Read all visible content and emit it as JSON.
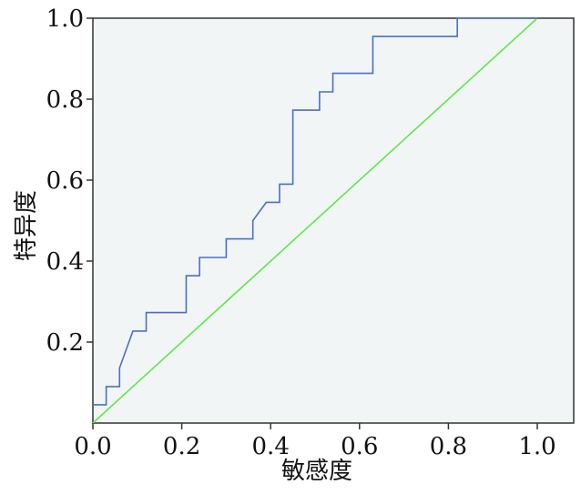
{
  "chart_data": {
    "type": "line",
    "title": "",
    "xlabel": "敏感度",
    "ylabel": "特异度",
    "xlim": [
      0,
      1.08
    ],
    "ylim": [
      0,
      1.0
    ],
    "x_ticks": [
      "0.0",
      "0.2",
      "0.4",
      "0.6",
      "0.8",
      "1.0"
    ],
    "y_ticks": [
      "0.2",
      "0.4",
      "0.6",
      "0.8",
      "1.0"
    ],
    "grid": false,
    "legend": "none",
    "colors": {
      "plot_bg": "#f2f5f5",
      "roc": "#4a6fc9",
      "reference": "#5ee84a",
      "axis": "#333333"
    },
    "series": [
      {
        "values": [
          [
            0.0,
            0.045
          ],
          [
            0.03,
            0.045
          ],
          [
            0.03,
            0.09
          ],
          [
            0.06,
            0.09
          ],
          [
            0.06,
            0.136
          ],
          [
            0.09,
            0.227
          ],
          [
            0.12,
            0.227
          ],
          [
            0.12,
            0.273
          ],
          [
            0.21,
            0.273
          ],
          [
            0.21,
            0.364
          ],
          [
            0.24,
            0.364
          ],
          [
            0.24,
            0.409
          ],
          [
            0.3,
            0.409
          ],
          [
            0.3,
            0.455
          ],
          [
            0.36,
            0.455
          ],
          [
            0.36,
            0.5
          ],
          [
            0.39,
            0.545
          ],
          [
            0.42,
            0.545
          ],
          [
            0.42,
            0.59
          ],
          [
            0.45,
            0.59
          ],
          [
            0.45,
            0.773
          ],
          [
            0.51,
            0.773
          ],
          [
            0.51,
            0.818
          ],
          [
            0.54,
            0.818
          ],
          [
            0.54,
            0.864
          ],
          [
            0.63,
            0.864
          ],
          [
            0.63,
            0.955
          ],
          [
            0.82,
            0.955
          ],
          [
            0.82,
            1.0
          ],
          [
            1.0,
            1.0
          ]
        ]
      },
      {
        "values": [
          [
            0.0,
            0.0
          ],
          [
            1.0,
            1.0
          ]
        ]
      }
    ]
  }
}
